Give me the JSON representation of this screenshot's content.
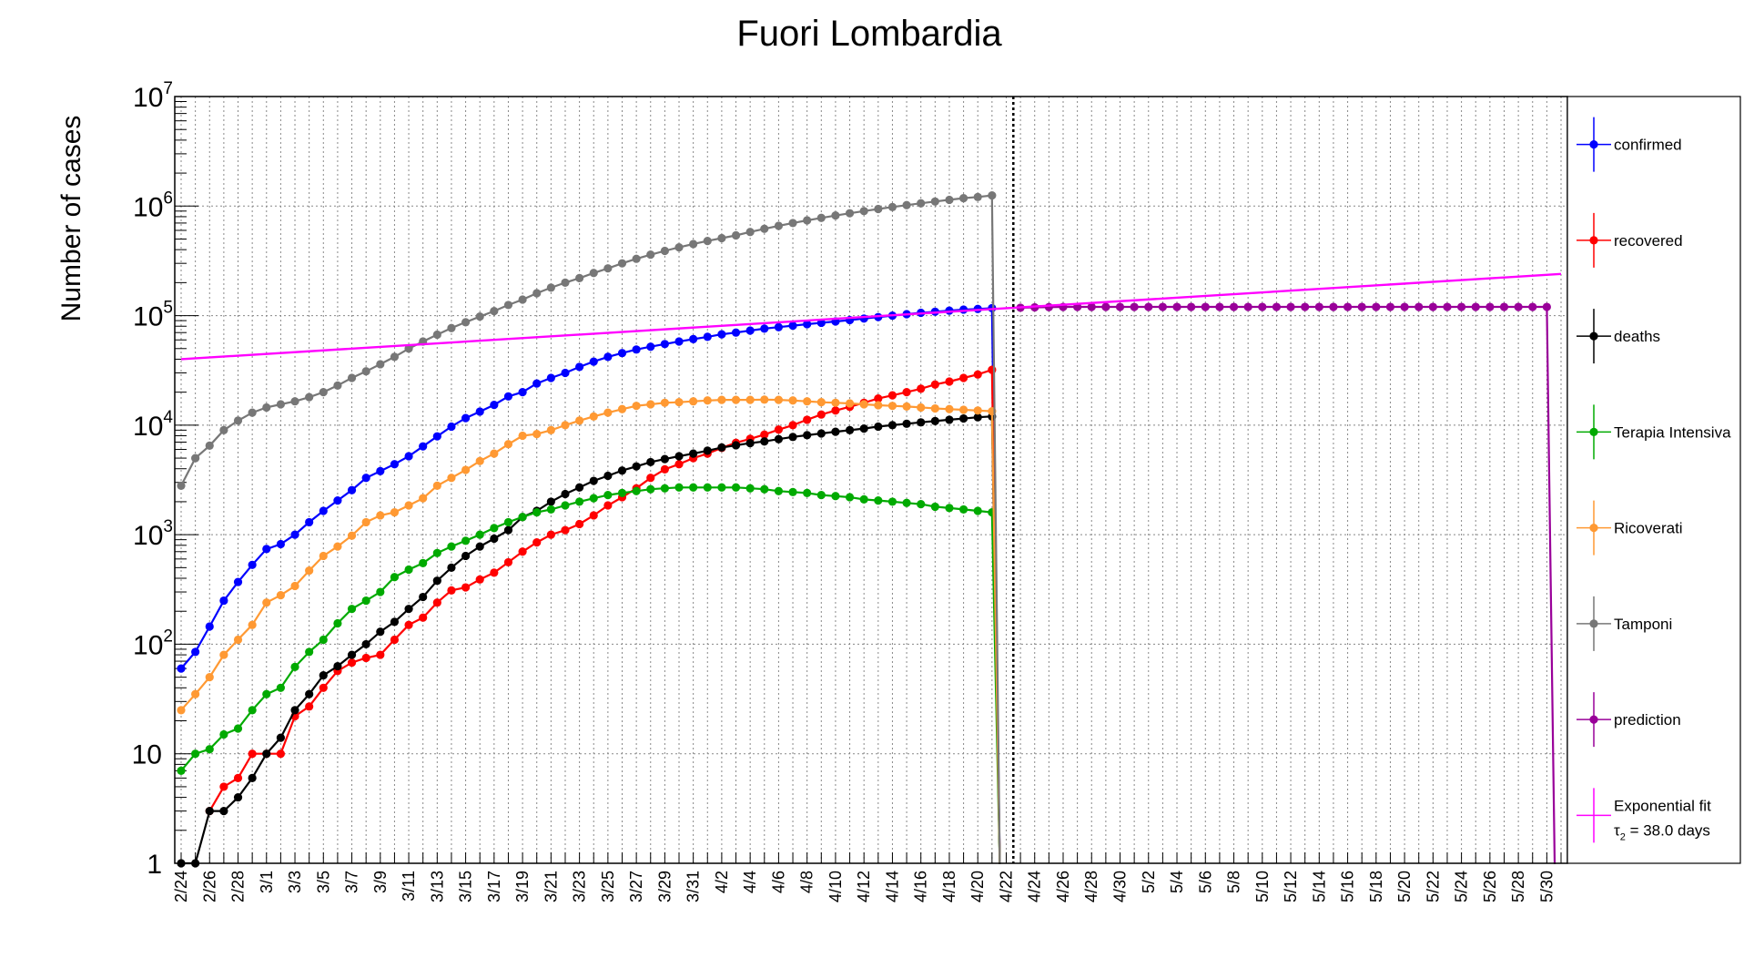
{
  "chart_data": {
    "type": "line",
    "title": "Fuori Lombardia",
    "ylabel": "Number of cases",
    "xlabel": "",
    "y_scale": "log",
    "ylim": [
      1,
      10000000
    ],
    "grid": true,
    "legend_placement": "right",
    "y_tick_labels": [
      {
        "value": 1,
        "base": "1",
        "exp": ""
      },
      {
        "value": 10,
        "base": "10",
        "exp": ""
      },
      {
        "value": 100,
        "base": "10",
        "exp": "2"
      },
      {
        "value": 1000,
        "base": "10",
        "exp": "3"
      },
      {
        "value": 10000,
        "base": "10",
        "exp": "4"
      },
      {
        "value": 100000,
        "base": "10",
        "exp": "5"
      },
      {
        "value": 1000000,
        "base": "10",
        "exp": "6"
      },
      {
        "value": 10000000,
        "base": "10",
        "exp": "7"
      }
    ],
    "x_dates": [
      "2/24",
      "2/25",
      "2/26",
      "2/27",
      "2/28",
      "2/29",
      "3/1",
      "3/2",
      "3/3",
      "3/4",
      "3/5",
      "3/6",
      "3/7",
      "3/8",
      "3/9",
      "3/10",
      "3/11",
      "3/12",
      "3/13",
      "3/14",
      "3/15",
      "3/16",
      "3/17",
      "3/18",
      "3/19",
      "3/20",
      "3/21",
      "3/22",
      "3/23",
      "3/24",
      "3/25",
      "3/26",
      "3/27",
      "3/28",
      "3/29",
      "3/30",
      "3/31",
      "4/1",
      "4/2",
      "4/3",
      "4/4",
      "4/5",
      "4/6",
      "4/7",
      "4/8",
      "4/9",
      "4/10",
      "4/11",
      "4/12",
      "4/13",
      "4/14",
      "4/15",
      "4/16",
      "4/17",
      "4/18",
      "4/19",
      "4/20",
      "4/21",
      "4/22",
      "4/23",
      "4/24",
      "4/25",
      "4/26",
      "4/27",
      "4/28",
      "4/29",
      "4/30",
      "5/1",
      "5/2",
      "5/3",
      "5/4",
      "5/5",
      "5/6",
      "5/7",
      "5/8",
      "5/9",
      "5/10",
      "5/11",
      "5/12",
      "5/13",
      "5/14",
      "5/15",
      "5/16",
      "5/17",
      "5/18",
      "5/19",
      "5/20",
      "5/21",
      "5/22",
      "5/23",
      "5/24",
      "5/25",
      "5/26",
      "5/27",
      "5/28",
      "5/29",
      "5/30",
      "5/31"
    ],
    "x_tick_labels": [
      "2/24",
      "2/26",
      "2/28",
      "3/1",
      "3/3",
      "3/5",
      "3/7",
      "3/9",
      "3/11",
      "3/13",
      "3/15",
      "3/17",
      "3/19",
      "3/21",
      "3/23",
      "3/25",
      "3/27",
      "3/29",
      "3/31",
      "4/2",
      "4/4",
      "4/6",
      "4/8",
      "4/10",
      "4/12",
      "4/14",
      "4/16",
      "4/18",
      "4/20",
      "4/22",
      "4/24",
      "4/26",
      "4/28",
      "4/30",
      "5/2",
      "5/4",
      "5/6",
      "5/8",
      "5/10",
      "5/12",
      "5/14",
      "5/16",
      "5/18",
      "5/20",
      "5/22",
      "5/24",
      "5/26",
      "5/28",
      "5/30"
    ],
    "vline_date": "4/22",
    "series": [
      {
        "name": "confirmed",
        "color": "#0000ff",
        "values": [
          60,
          85,
          145,
          250,
          370,
          530,
          740,
          820,
          1000,
          1300,
          1650,
          2050,
          2550,
          3300,
          3800,
          4400,
          5200,
          6400,
          7900,
          9700,
          11600,
          13300,
          15300,
          18300,
          20000,
          24000,
          27000,
          30000,
          34000,
          38000,
          42000,
          45500,
          49000,
          52000,
          55000,
          58000,
          61000,
          64000,
          67500,
          70000,
          73000,
          76000,
          78500,
          81000,
          83500,
          86000,
          88500,
          91000,
          94000,
          97000,
          100000,
          103000,
          106000,
          108500,
          111000,
          113500,
          115000,
          117000
        ]
      },
      {
        "name": "recovered",
        "color": "#ff0000",
        "values": [
          null,
          null,
          3,
          5,
          6,
          10,
          10,
          10,
          22,
          27,
          40,
          57,
          68,
          75,
          80,
          110,
          150,
          175,
          240,
          310,
          330,
          390,
          450,
          560,
          700,
          850,
          1000,
          1100,
          1250,
          1500,
          1850,
          2200,
          2650,
          3300,
          3950,
          4400,
          5000,
          5500,
          6200,
          6900,
          7500,
          8200,
          9100,
          10000,
          11200,
          12500,
          13600,
          14700,
          16000,
          17500,
          18700,
          20000,
          21500,
          23500,
          25000,
          27000,
          29000,
          32000
        ]
      },
      {
        "name": "deaths",
        "color": "#000000",
        "values": [
          1,
          1,
          3,
          3,
          4,
          6,
          10,
          14,
          25,
          35,
          52,
          63,
          80,
          100,
          130,
          160,
          210,
          270,
          380,
          500,
          640,
          780,
          920,
          1100,
          1450,
          1650,
          2000,
          2350,
          2700,
          3100,
          3450,
          3850,
          4200,
          4600,
          4900,
          5200,
          5500,
          5850,
          6250,
          6550,
          6850,
          7100,
          7450,
          7800,
          8100,
          8400,
          8700,
          9000,
          9300,
          9700,
          10000,
          10300,
          10600,
          10900,
          11200,
          11500,
          11800,
          12000
        ]
      },
      {
        "name": "Terapia Intensiva",
        "color": "#00aa00",
        "values": [
          7,
          10,
          11,
          15,
          17,
          25,
          35,
          40,
          62,
          85,
          110,
          155,
          210,
          250,
          300,
          410,
          480,
          550,
          680,
          780,
          880,
          1000,
          1150,
          1300,
          1450,
          1600,
          1700,
          1850,
          2000,
          2150,
          2300,
          2400,
          2500,
          2600,
          2650,
          2700,
          2700,
          2700,
          2700,
          2700,
          2650,
          2600,
          2500,
          2450,
          2400,
          2300,
          2250,
          2200,
          2100,
          2050,
          2000,
          1950,
          1900,
          1800,
          1750,
          1700,
          1650,
          1600
        ]
      },
      {
        "name": "Ricoverati",
        "color": "#ff9933",
        "values": [
          25,
          35,
          50,
          80,
          110,
          150,
          240,
          280,
          340,
          470,
          640,
          780,
          980,
          1300,
          1500,
          1600,
          1850,
          2150,
          2800,
          3300,
          3900,
          4700,
          5500,
          6700,
          8000,
          8300,
          9000,
          10000,
          11000,
          12000,
          13000,
          14000,
          15000,
          15500,
          16000,
          16200,
          16500,
          16800,
          17000,
          17000,
          17000,
          17100,
          17000,
          16800,
          16500,
          16200,
          16000,
          15800,
          15500,
          15200,
          15000,
          14800,
          14500,
          14200,
          14000,
          13800,
          13600,
          13400
        ]
      },
      {
        "name": "Tamponi",
        "color": "#777777",
        "values": [
          2800,
          5000,
          6500,
          9000,
          11000,
          13000,
          14500,
          15500,
          16500,
          18000,
          20000,
          23000,
          27000,
          31000,
          36000,
          42000,
          50000,
          58000,
          67000,
          77000,
          87000,
          98000,
          110000,
          125000,
          140000,
          160000,
          180000,
          200000,
          220000,
          245000,
          270000,
          300000,
          330000,
          360000,
          390000,
          420000,
          450000,
          480000,
          510000,
          540000,
          580000,
          620000,
          660000,
          700000,
          740000,
          780000,
          820000,
          860000,
          900000,
          940000,
          980000,
          1020000,
          1060000,
          1100000,
          1140000,
          1180000,
          1210000,
          1250000
        ]
      },
      {
        "name": "prediction",
        "color": "#990099",
        "values": [
          null,
          null,
          null,
          null,
          null,
          null,
          null,
          null,
          null,
          null,
          null,
          null,
          null,
          null,
          null,
          null,
          null,
          null,
          null,
          null,
          null,
          null,
          null,
          null,
          null,
          null,
          null,
          null,
          null,
          null,
          null,
          null,
          null,
          null,
          null,
          null,
          null,
          null,
          null,
          null,
          null,
          null,
          null,
          null,
          null,
          null,
          null,
          null,
          null,
          null,
          null,
          null,
          null,
          null,
          null,
          null,
          null,
          null,
          null,
          118000,
          119000,
          119500,
          120000,
          120000,
          120000,
          120000,
          120000,
          120000,
          120000,
          120000,
          120000,
          120000,
          120000,
          120000,
          120000,
          120000,
          120000,
          120000,
          120000,
          120000,
          120000,
          120000,
          120000,
          120000,
          120000,
          120000,
          120000,
          120000,
          120000,
          120000,
          120000,
          120000,
          120000,
          120000,
          120000,
          120000,
          120000
        ]
      },
      {
        "name": "Exponential fit",
        "name_line2_base": "τ",
        "name_line2_sub": "2",
        "name_line2_rest": " = 38.0 days",
        "color": "#ff00ff",
        "fit_start": {
          "date": "2/24",
          "value": 40000
        },
        "fit_end": {
          "date": "5/31",
          "value": 240000
        }
      }
    ]
  }
}
